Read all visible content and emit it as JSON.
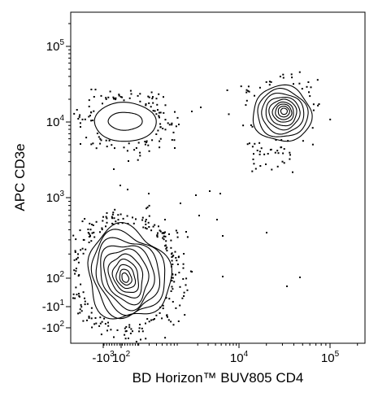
{
  "chart_data": {
    "type": "contour",
    "title": "",
    "xlabel": "BD Horizon™ BUV805 CD4",
    "ylabel": "APC CD3e",
    "x_scale": "biexponential",
    "y_scale": "biexponential",
    "x_ticks": [
      {
        "value": -1000,
        "base": "-10",
        "exp": "3"
      },
      {
        "value": 100,
        "base": "10",
        "exp": "2"
      },
      {
        "value": 10000,
        "base": "10",
        "exp": "4"
      },
      {
        "value": 100000,
        "base": "10",
        "exp": "5"
      }
    ],
    "y_ticks": [
      {
        "value": 100000,
        "base": "10",
        "exp": "5"
      },
      {
        "value": 10000,
        "base": "10",
        "exp": "4"
      },
      {
        "value": 1000,
        "base": "10",
        "exp": "3"
      },
      {
        "value": 100,
        "base": "10",
        "exp": "2"
      },
      {
        "value": -10,
        "base": "-10",
        "exp": "1"
      },
      {
        "value": -100,
        "base": "-10",
        "exp": "2"
      }
    ],
    "grid": false,
    "legend": "none",
    "populations": [
      {
        "description": "CD4- CD3e-",
        "x_center": 50,
        "y_center": 100,
        "levels": 9
      },
      {
        "description": "CD4- CD3e+",
        "x_center": 50,
        "y_center": 9000,
        "levels": 2
      },
      {
        "description": "CD4+ CD3e+",
        "x_center": 30000,
        "y_center": 13000,
        "levels": 9
      }
    ]
  }
}
